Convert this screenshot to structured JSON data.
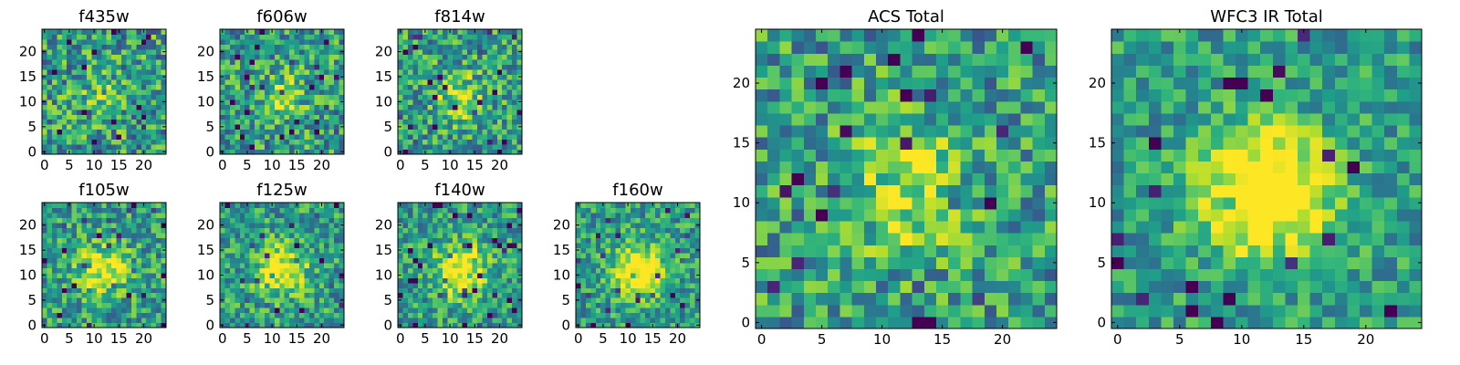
{
  "chart_data": [
    {
      "type": "heatmap",
      "title": "f435w",
      "nx": 25,
      "ny": 25,
      "seed": 11,
      "blob": 0.15,
      "x_ticks": [
        "0",
        "5",
        "10",
        "15",
        "20"
      ],
      "y_ticks": [
        "0",
        "5",
        "10",
        "15",
        "20"
      ],
      "xlim": [
        0,
        24
      ],
      "ylim": [
        0,
        24
      ],
      "colormap": "viridis"
    },
    {
      "type": "heatmap",
      "title": "f606w",
      "nx": 25,
      "ny": 25,
      "seed": 23,
      "blob": 0.25,
      "x_ticks": [
        "0",
        "5",
        "10",
        "15",
        "20"
      ],
      "y_ticks": [
        "0",
        "5",
        "10",
        "15",
        "20"
      ],
      "xlim": [
        0,
        24
      ],
      "ylim": [
        0,
        24
      ],
      "colormap": "viridis"
    },
    {
      "type": "heatmap",
      "title": "f814w",
      "nx": 25,
      "ny": 25,
      "seed": 37,
      "blob": 0.3,
      "x_ticks": [
        "0",
        "5",
        "10",
        "15",
        "20"
      ],
      "y_ticks": [
        "0",
        "5",
        "10",
        "15",
        "20"
      ],
      "xlim": [
        0,
        24
      ],
      "ylim": [
        0,
        24
      ],
      "colormap": "viridis"
    },
    {
      "type": "heatmap",
      "title": "f105w",
      "nx": 25,
      "ny": 25,
      "seed": 41,
      "blob": 0.45,
      "x_ticks": [
        "0",
        "5",
        "10",
        "15",
        "20"
      ],
      "y_ticks": [
        "0",
        "5",
        "10",
        "15",
        "20"
      ],
      "xlim": [
        0,
        24
      ],
      "ylim": [
        0,
        24
      ],
      "colormap": "viridis"
    },
    {
      "type": "heatmap",
      "title": "f125w",
      "nx": 25,
      "ny": 25,
      "seed": 53,
      "blob": 0.5,
      "x_ticks": [
        "0",
        "5",
        "10",
        "15",
        "20"
      ],
      "y_ticks": [
        "0",
        "5",
        "10",
        "15",
        "20"
      ],
      "xlim": [
        0,
        24
      ],
      "ylim": [
        0,
        24
      ],
      "colormap": "viridis"
    },
    {
      "type": "heatmap",
      "title": "f140w",
      "nx": 25,
      "ny": 25,
      "seed": 67,
      "blob": 0.55,
      "x_ticks": [
        "0",
        "5",
        "10",
        "15",
        "20"
      ],
      "y_ticks": [
        "0",
        "5",
        "10",
        "15",
        "20"
      ],
      "xlim": [
        0,
        24
      ],
      "ylim": [
        0,
        24
      ],
      "colormap": "viridis"
    },
    {
      "type": "heatmap",
      "title": "f160w",
      "nx": 25,
      "ny": 25,
      "seed": 79,
      "blob": 0.6,
      "x_ticks": [
        "0",
        "5",
        "10",
        "15",
        "20"
      ],
      "y_ticks": [
        "0",
        "5",
        "10",
        "15",
        "20"
      ],
      "xlim": [
        0,
        24
      ],
      "ylim": [
        0,
        24
      ],
      "colormap": "viridis"
    },
    {
      "type": "heatmap",
      "title": "ACS Total",
      "nx": 25,
      "ny": 25,
      "seed": 97,
      "blob": 0.35,
      "x_ticks": [
        "0",
        "5",
        "10",
        "15",
        "20"
      ],
      "y_ticks": [
        "0",
        "5",
        "10",
        "15",
        "20"
      ],
      "xlim": [
        0,
        24
      ],
      "ylim": [
        0,
        24
      ],
      "colormap": "viridis"
    },
    {
      "type": "heatmap",
      "title": "WFC3 IR Total",
      "nx": 25,
      "ny": 25,
      "seed": 113,
      "blob": 0.75,
      "x_ticks": [
        "0",
        "5",
        "10",
        "15",
        "20"
      ],
      "y_ticks": [
        "0",
        "5",
        "10",
        "15",
        "20"
      ],
      "xlim": [
        0,
        24
      ],
      "ylim": [
        0,
        24
      ],
      "colormap": "viridis"
    }
  ]
}
